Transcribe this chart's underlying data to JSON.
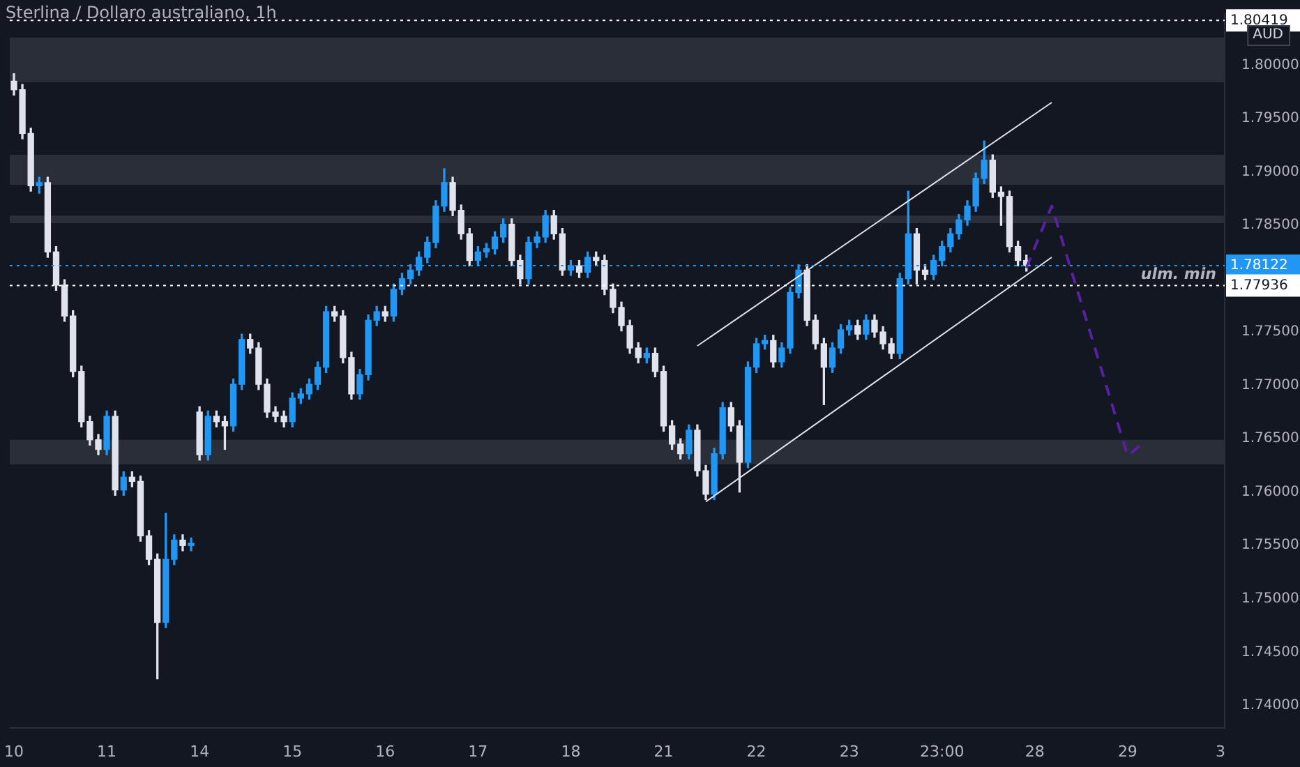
{
  "chart_data": {
    "type": "candlestick",
    "title": "Sterlina / Dollaro australiano, 1h",
    "categories": [
      "10",
      null,
      null,
      null,
      null,
      null,
      null,
      null,
      null,
      null,
      null,
      "11",
      null,
      null,
      null,
      null,
      null,
      null,
      null,
      null,
      null,
      null,
      "14",
      null,
      null,
      null,
      null,
      null,
      null,
      null,
      null,
      null,
      null,
      "15",
      null,
      null,
      null,
      null,
      null,
      null,
      null,
      null,
      null,
      null,
      "16",
      null,
      null,
      null,
      null,
      null,
      null,
      null,
      null,
      null,
      null,
      "17",
      null,
      null,
      null,
      null,
      null,
      null,
      null,
      null,
      null,
      null,
      "18",
      null,
      null,
      null,
      null,
      null,
      null,
      null,
      null,
      null,
      null,
      "21",
      null,
      null,
      null,
      null,
      null,
      null,
      null,
      null,
      null,
      null,
      "22",
      null,
      null,
      null,
      null,
      null,
      null,
      null,
      null,
      null,
      null,
      "23",
      null,
      null,
      null,
      null,
      null,
      null,
      null,
      null,
      null,
      null,
      "23:00",
      null,
      null,
      null,
      null,
      null,
      null,
      null,
      null,
      null,
      null,
      "28",
      null,
      null,
      null,
      null,
      null,
      null,
      null,
      null,
      null,
      null,
      "29",
      null,
      null,
      null,
      null,
      null,
      null,
      null,
      null,
      null,
      null,
      "3"
    ],
    "ohlc": [
      [
        1.7985,
        1.7992,
        1.7972,
        1.7977
      ],
      [
        1.7977,
        1.7982,
        1.7931,
        1.7936
      ],
      [
        1.7936,
        1.7941,
        1.7882,
        1.7887
      ],
      [
        1.7887,
        1.7895,
        1.788,
        1.789
      ],
      [
        1.789,
        1.7895,
        1.782,
        1.7825
      ],
      [
        1.7825,
        1.783,
        1.7789,
        1.7794
      ],
      [
        1.7794,
        1.7799,
        1.776,
        1.7765
      ],
      [
        1.7765,
        1.777,
        1.7708,
        1.7713
      ],
      [
        1.7713,
        1.7718,
        1.7661,
        1.7666
      ],
      [
        1.7666,
        1.7671,
        1.7644,
        1.7649
      ],
      [
        1.7649,
        1.7654,
        1.7635,
        1.764
      ],
      [
        1.764,
        1.7676,
        1.7635,
        1.7671
      ],
      [
        1.7671,
        1.7676,
        1.7597,
        1.7602
      ],
      [
        1.7602,
        1.7619,
        1.7597,
        1.7614
      ],
      [
        1.7614,
        1.7619,
        1.7605,
        1.761
      ],
      [
        1.761,
        1.7615,
        1.7554,
        1.7559
      ],
      [
        1.7559,
        1.7564,
        1.7532,
        1.7537
      ],
      [
        1.7537,
        1.7542,
        1.7425,
        1.7478
      ],
      [
        1.7478,
        1.758,
        1.7473,
        1.7537
      ],
      [
        1.7537,
        1.756,
        1.7532,
        1.7555
      ],
      [
        1.7555,
        1.756,
        1.7545,
        1.755
      ],
      [
        1.755,
        1.7557,
        1.7545,
        1.7552
      ],
      [
        1.7675,
        1.768,
        1.763,
        1.7635
      ],
      [
        1.7635,
        1.7676,
        1.763,
        1.7671
      ],
      [
        1.7671,
        1.7676,
        1.7661,
        1.7666
      ],
      [
        1.7666,
        1.7671,
        1.764,
        1.7662
      ],
      [
        1.7662,
        1.7706,
        1.7657,
        1.7701
      ],
      [
        1.7701,
        1.7748,
        1.7696,
        1.7743
      ],
      [
        1.7743,
        1.7748,
        1.773,
        1.7735
      ],
      [
        1.7735,
        1.774,
        1.7696,
        1.7701
      ],
      [
        1.7701,
        1.7706,
        1.767,
        1.7675
      ],
      [
        1.7675,
        1.768,
        1.7666,
        1.7671
      ],
      [
        1.7671,
        1.7676,
        1.7661,
        1.7666
      ],
      [
        1.7666,
        1.7693,
        1.7661,
        1.7688
      ],
      [
        1.7688,
        1.7697,
        1.7683,
        1.7692
      ],
      [
        1.7692,
        1.7706,
        1.7687,
        1.7701
      ],
      [
        1.7701,
        1.7722,
        1.7696,
        1.7717
      ],
      [
        1.7717,
        1.7774,
        1.7712,
        1.7769
      ],
      [
        1.7769,
        1.7774,
        1.776,
        1.7765
      ],
      [
        1.7765,
        1.777,
        1.7721,
        1.7726
      ],
      [
        1.7726,
        1.7731,
        1.7687,
        1.7692
      ],
      [
        1.7692,
        1.7715,
        1.7687,
        1.771
      ],
      [
        1.771,
        1.7766,
        1.7705,
        1.7761
      ],
      [
        1.7761,
        1.7774,
        1.7756,
        1.7769
      ],
      [
        1.7769,
        1.7774,
        1.776,
        1.7765
      ],
      [
        1.7765,
        1.7795,
        1.776,
        1.779
      ],
      [
        1.779,
        1.7805,
        1.7785,
        1.78
      ],
      [
        1.78,
        1.7813,
        1.7795,
        1.7808
      ],
      [
        1.7808,
        1.7825,
        1.7803,
        1.782
      ],
      [
        1.782,
        1.7839,
        1.7815,
        1.7834
      ],
      [
        1.7834,
        1.7873,
        1.7829,
        1.7868
      ],
      [
        1.7868,
        1.7903,
        1.7863,
        1.789
      ],
      [
        1.789,
        1.7895,
        1.7859,
        1.7864
      ],
      [
        1.7864,
        1.7869,
        1.7837,
        1.7842
      ],
      [
        1.7842,
        1.7847,
        1.7812,
        1.7817
      ],
      [
        1.7817,
        1.783,
        1.7812,
        1.7825
      ],
      [
        1.7825,
        1.7833,
        1.782,
        1.7828
      ],
      [
        1.7828,
        1.7844,
        1.7823,
        1.7839
      ],
      [
        1.7839,
        1.7856,
        1.7834,
        1.7851
      ],
      [
        1.7851,
        1.7856,
        1.7812,
        1.7817
      ],
      [
        1.7817,
        1.7822,
        1.7795,
        1.78
      ],
      [
        1.78,
        1.7839,
        1.7795,
        1.7834
      ],
      [
        1.7834,
        1.7844,
        1.7829,
        1.7839
      ],
      [
        1.7839,
        1.7864,
        1.7834,
        1.7859
      ],
      [
        1.7859,
        1.7864,
        1.7837,
        1.7842
      ],
      [
        1.7842,
        1.7847,
        1.7803,
        1.7808
      ],
      [
        1.7808,
        1.7817,
        1.7803,
        1.7812
      ],
      [
        1.7812,
        1.7817,
        1.7801,
        1.7806
      ],
      [
        1.7806,
        1.7825,
        1.7801,
        1.782
      ],
      [
        1.782,
        1.7825,
        1.7812,
        1.7817
      ],
      [
        1.7817,
        1.7822,
        1.7785,
        1.779
      ],
      [
        1.779,
        1.7795,
        1.7768,
        1.7773
      ],
      [
        1.7773,
        1.7778,
        1.7751,
        1.7756
      ],
      [
        1.7756,
        1.7761,
        1.773,
        1.7735
      ],
      [
        1.7735,
        1.774,
        1.7721,
        1.7726
      ],
      [
        1.7726,
        1.7735,
        1.7721,
        1.773
      ],
      [
        1.773,
        1.7735,
        1.7708,
        1.7713
      ],
      [
        1.7713,
        1.7718,
        1.7657,
        1.7662
      ],
      [
        1.7662,
        1.7667,
        1.764,
        1.7645
      ],
      [
        1.7645,
        1.765,
        1.7631,
        1.7636
      ],
      [
        1.7636,
        1.7663,
        1.7631,
        1.7658
      ],
      [
        1.7658,
        1.7663,
        1.7615,
        1.762
      ],
      [
        1.762,
        1.7625,
        1.7593,
        1.7598
      ],
      [
        1.7598,
        1.7641,
        1.7593,
        1.7636
      ],
      [
        1.7636,
        1.7684,
        1.7631,
        1.7679
      ],
      [
        1.7679,
        1.7684,
        1.7657,
        1.7662
      ],
      [
        1.7662,
        1.7667,
        1.76,
        1.7628
      ],
      [
        1.7628,
        1.7722,
        1.7623,
        1.7717
      ],
      [
        1.7717,
        1.7744,
        1.7712,
        1.7739
      ],
      [
        1.7739,
        1.7747,
        1.7734,
        1.7742
      ],
      [
        1.7742,
        1.7747,
        1.7717,
        1.7722
      ],
      [
        1.7722,
        1.774,
        1.7717,
        1.7735
      ],
      [
        1.7735,
        1.7792,
        1.773,
        1.7787
      ],
      [
        1.7787,
        1.7813,
        1.7782,
        1.7808
      ],
      [
        1.7808,
        1.7813,
        1.7756,
        1.7761
      ],
      [
        1.7761,
        1.7766,
        1.7734,
        1.7739
      ],
      [
        1.7739,
        1.7744,
        1.7682,
        1.7717
      ],
      [
        1.7717,
        1.774,
        1.7712,
        1.7735
      ],
      [
        1.7735,
        1.7757,
        1.773,
        1.7752
      ],
      [
        1.7752,
        1.7761,
        1.7747,
        1.7756
      ],
      [
        1.7756,
        1.7761,
        1.7743,
        1.7748
      ],
      [
        1.7748,
        1.7766,
        1.7743,
        1.7761
      ],
      [
        1.7761,
        1.7766,
        1.7745,
        1.775
      ],
      [
        1.775,
        1.7755,
        1.7734,
        1.7739
      ],
      [
        1.7739,
        1.7744,
        1.7725,
        1.773
      ],
      [
        1.773,
        1.7805,
        1.7725,
        1.78
      ],
      [
        1.78,
        1.7882,
        1.7795,
        1.7842
      ],
      [
        1.7842,
        1.7847,
        1.7795,
        1.7808
      ],
      [
        1.7808,
        1.7813,
        1.7799,
        1.7804
      ],
      [
        1.7804,
        1.7822,
        1.7799,
        1.7817
      ],
      [
        1.7817,
        1.7835,
        1.7812,
        1.783
      ],
      [
        1.783,
        1.7847,
        1.7825,
        1.7842
      ],
      [
        1.7842,
        1.786,
        1.7837,
        1.7855
      ],
      [
        1.7855,
        1.7873,
        1.785,
        1.7868
      ],
      [
        1.7868,
        1.7899,
        1.7863,
        1.7894
      ],
      [
        1.7894,
        1.7929,
        1.7889,
        1.7911
      ],
      [
        1.7911,
        1.7916,
        1.7876,
        1.7881
      ],
      [
        1.7881,
        1.7886,
        1.785,
        1.7877
      ],
      [
        1.7877,
        1.7882,
        1.7825,
        1.783
      ],
      [
        1.783,
        1.7835,
        1.7812,
        1.7817
      ],
      [
        1.7817,
        1.7822,
        1.7807,
        1.78122
      ],
      null,
      null,
      null,
      null,
      null,
      null,
      null,
      null,
      null,
      null,
      null,
      null,
      null,
      null,
      null,
      null,
      null,
      null,
      null,
      null,
      null,
      null,
      null
    ],
    "series": [
      {
        "type": "line",
        "color": "#e0e3eb",
        "line_style": "solid",
        "values": [
          null,
          null,
          null,
          null,
          null,
          null,
          null,
          null,
          null,
          null,
          null,
          null,
          null,
          null,
          null,
          null,
          null,
          null,
          null,
          null,
          null,
          null,
          null,
          null,
          null,
          null,
          null,
          null,
          null,
          null,
          null,
          null,
          null,
          null,
          null,
          null,
          null,
          null,
          null,
          null,
          null,
          null,
          null,
          null,
          null,
          null,
          null,
          null,
          null,
          null,
          null,
          null,
          null,
          null,
          null,
          null,
          null,
          null,
          null,
          null,
          null,
          null,
          null,
          null,
          null,
          null,
          null,
          null,
          null,
          null,
          null,
          null,
          null,
          null,
          null,
          null,
          null,
          null,
          null,
          null,
          null,
          1.7737,
          null,
          null,
          null,
          null,
          null,
          null,
          null,
          null,
          null,
          null,
          null,
          null,
          null,
          null,
          null,
          null,
          null,
          null,
          null,
          null,
          null,
          null,
          null,
          null,
          null,
          null,
          null,
          null,
          null,
          null,
          null,
          null,
          null,
          null,
          null,
          null,
          null,
          null,
          null,
          null,
          null,
          1.7965,
          null,
          null,
          null,
          null,
          null,
          null,
          null,
          null,
          null,
          null,
          null,
          null,
          null,
          null,
          null,
          null,
          null,
          null,
          null,
          null
        ]
      },
      {
        "type": "line",
        "color": "#e0e3eb",
        "line_style": "solid",
        "values": [
          null,
          null,
          null,
          null,
          null,
          null,
          null,
          null,
          null,
          null,
          null,
          null,
          null,
          null,
          null,
          null,
          null,
          null,
          null,
          null,
          null,
          null,
          null,
          null,
          null,
          null,
          null,
          null,
          null,
          null,
          null,
          null,
          null,
          null,
          null,
          null,
          null,
          null,
          null,
          null,
          null,
          null,
          null,
          null,
          null,
          null,
          null,
          null,
          null,
          null,
          null,
          null,
          null,
          null,
          null,
          null,
          null,
          null,
          null,
          null,
          null,
          null,
          null,
          null,
          null,
          null,
          null,
          null,
          null,
          null,
          null,
          null,
          null,
          null,
          null,
          null,
          null,
          null,
          null,
          null,
          null,
          null,
          1.7591,
          null,
          null,
          null,
          null,
          null,
          null,
          null,
          null,
          null,
          null,
          null,
          null,
          null,
          null,
          null,
          null,
          null,
          null,
          null,
          null,
          null,
          null,
          null,
          null,
          null,
          null,
          null,
          null,
          null,
          null,
          null,
          null,
          null,
          null,
          null,
          null,
          null,
          null,
          null,
          null,
          1.782,
          null,
          null,
          null,
          null,
          null,
          null,
          null,
          null,
          null,
          null,
          null,
          null,
          null,
          null,
          null,
          null,
          null,
          null,
          null,
          null
        ]
      },
      {
        "type": "line",
        "color": "#5b1fa3",
        "line_style": "dashed",
        "values": [
          null,
          null,
          null,
          null,
          null,
          null,
          null,
          null,
          null,
          null,
          null,
          null,
          null,
          null,
          null,
          null,
          null,
          null,
          null,
          null,
          null,
          null,
          null,
          null,
          null,
          null,
          null,
          null,
          null,
          null,
          null,
          null,
          null,
          null,
          null,
          null,
          null,
          null,
          null,
          null,
          null,
          null,
          null,
          null,
          null,
          null,
          null,
          null,
          null,
          null,
          null,
          null,
          null,
          null,
          null,
          null,
          null,
          null,
          null,
          null,
          null,
          null,
          null,
          null,
          null,
          null,
          null,
          null,
          null,
          null,
          null,
          null,
          null,
          null,
          null,
          null,
          null,
          null,
          null,
          null,
          null,
          null,
          null,
          null,
          null,
          null,
          null,
          null,
          null,
          null,
          null,
          null,
          null,
          null,
          null,
          null,
          null,
          null,
          null,
          null,
          null,
          null,
          null,
          null,
          null,
          null,
          null,
          null,
          null,
          null,
          null,
          null,
          null,
          null,
          null,
          null,
          null,
          null,
          null,
          null,
          1.781,
          null,
          null,
          1.7868,
          null,
          null,
          null,
          null,
          null,
          null,
          null,
          null,
          1.7634,
          null,
          1.7647,
          null,
          null,
          null,
          null,
          null,
          null,
          null,
          null,
          null
        ]
      }
    ],
    "ylim": [
      1.7379,
      1.8048
    ],
    "yticks": [
      {
        "value": 1.74,
        "label": "1.74000"
      },
      {
        "value": 1.745,
        "label": "1.74500"
      },
      {
        "value": 1.75,
        "label": "1.75000"
      },
      {
        "value": 1.755,
        "label": "1.75500"
      },
      {
        "value": 1.76,
        "label": "1.76000"
      },
      {
        "value": 1.765,
        "label": "1.76500"
      },
      {
        "value": 1.77,
        "label": "1.77000"
      },
      {
        "value": 1.775,
        "label": "1.77500"
      },
      {
        "value": 1.785,
        "label": "1.78500"
      },
      {
        "value": 1.79,
        "label": "1.79000"
      },
      {
        "value": 1.795,
        "label": "1.79500"
      },
      {
        "value": 1.8,
        "label": "1.80000"
      }
    ],
    "bands": [
      {
        "axis": "y",
        "from": 1.7984,
        "to": 1.8026,
        "color": "#2a2e39"
      },
      {
        "axis": "y",
        "from": 1.7888,
        "to": 1.7916,
        "color": "#2a2e39"
      },
      {
        "axis": "y",
        "from": 1.7852,
        "to": 1.7859,
        "color": "#2a2e39"
      },
      {
        "axis": "y",
        "from": 1.7626,
        "to": 1.7649,
        "color": "#2a2e39"
      }
    ],
    "ref_lines": [
      {
        "axis": "y",
        "value": 1.80419,
        "label": "1.80419",
        "color": "#ffffff",
        "line_style": "dotted"
      },
      {
        "axis": "y",
        "value": 1.78122,
        "label": "1.78122",
        "color": "#2196f3",
        "line_style": "dotted"
      },
      {
        "axis": "y",
        "value": 1.77936,
        "label": "1.77936",
        "color": "#ffffff",
        "line_style": "dotted"
      }
    ],
    "annotations": [
      "AUD",
      {
        "text": "ulm. min",
        "y": 1.77936
      }
    ],
    "grid": false,
    "legend": false
  }
}
